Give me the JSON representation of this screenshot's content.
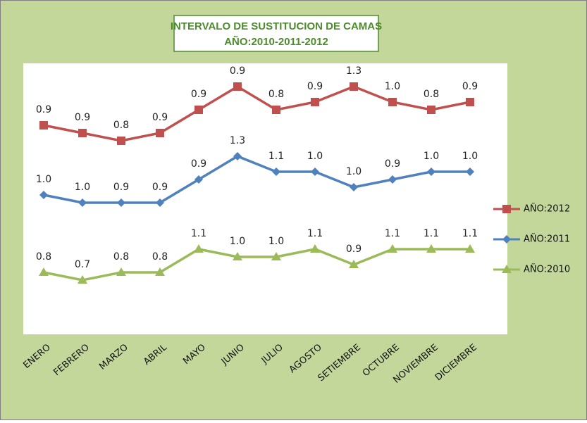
{
  "chart_data": {
    "type": "stacked_line",
    "title": "INTERVALO DE SUSTITUCION DE CAMAS",
    "subtitle": "AÑO:2010-2011-2012",
    "categories": [
      "ENERO",
      "FEBRERO",
      "MARZO",
      "ABRIL",
      "MAYO",
      "JUNIO",
      "JULIO",
      "AGOSTO",
      "SETIEMBRE",
      "OCTUBRE",
      "NOVIEMBRE",
      "DICIEMBRE"
    ],
    "ylim": [
      0,
      3.5
    ],
    "series": [
      {
        "name": "AÑO:2010",
        "color": "#9bbb59",
        "marker": "triangle",
        "values": [
          0.8,
          0.7,
          0.8,
          0.8,
          1.1,
          1.0,
          1.0,
          1.1,
          0.9,
          1.1,
          1.1,
          1.1
        ],
        "value_labels": [
          "0.8",
          "0.7",
          "0.8",
          "0.8",
          "1.1",
          "1.0",
          "1.0",
          "1.1",
          "0.9",
          "1.1",
          "1.1",
          "1.1"
        ]
      },
      {
        "name": "AÑO:2011",
        "color": "#4f81bd",
        "marker": "diamond",
        "values": [
          1.0,
          1.0,
          0.9,
          0.9,
          0.9,
          1.3,
          1.1,
          1.0,
          1.0,
          0.9,
          1.0,
          1.0
        ],
        "value_labels": [
          "1.0",
          "1.0",
          "0.9",
          "0.9",
          "0.9",
          "1.3",
          "1.1",
          "1.0",
          "1.0",
          "0.9",
          "1.0",
          "1.0"
        ]
      },
      {
        "name": "AÑO:2012",
        "color": "#c0504d",
        "marker": "square",
        "values": [
          0.9,
          0.9,
          0.8,
          0.9,
          0.9,
          0.9,
          0.8,
          0.9,
          1.3,
          1.0,
          0.8,
          0.9
        ],
        "value_labels": [
          "0.9",
          "0.9",
          "0.8",
          "0.9",
          "0.9",
          "0.9",
          "0.8",
          "0.9",
          "1.3",
          "1.0",
          "0.8",
          "0.9"
        ]
      }
    ]
  }
}
